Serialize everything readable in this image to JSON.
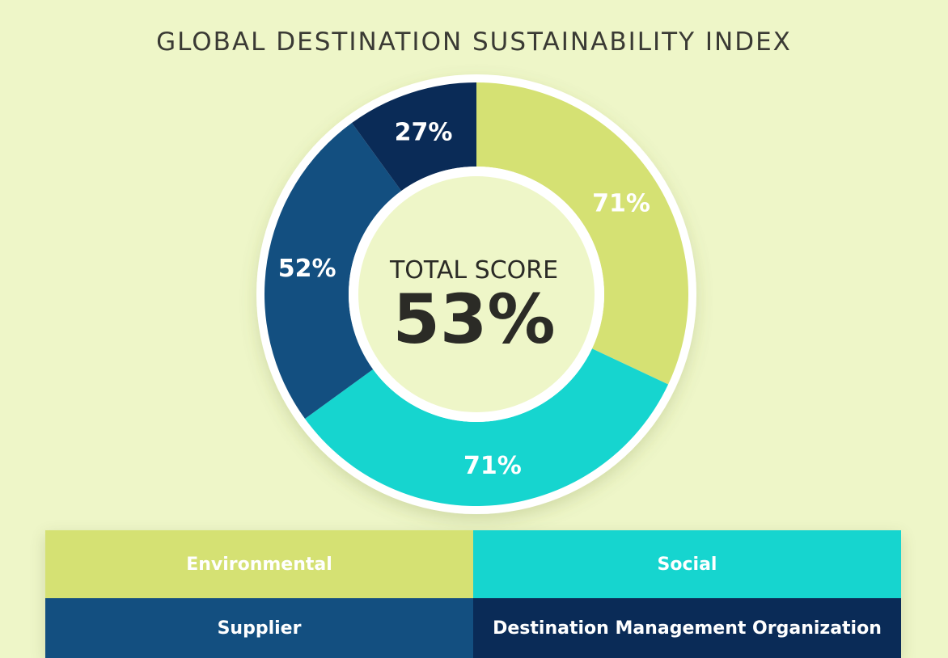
{
  "chart_data": {
    "type": "pie",
    "title": "GLOBAL DESTINATION SUSTAINABILITY INDEX",
    "center_caption": "TOTAL SCORE",
    "center_value": "53%",
    "slices": [
      {
        "name": "Environmental",
        "label": "71%",
        "value": 71,
        "share": 0.32,
        "color": "#d5e173"
      },
      {
        "name": "Social",
        "label": "71%",
        "value": 71,
        "share": 0.33,
        "color": "#16d5cf"
      },
      {
        "name": "Supplier",
        "label": "52%",
        "value": 52,
        "share": 0.25,
        "color": "#134f80"
      },
      {
        "name": "Destination Management Organization",
        "label": "27%",
        "value": 27,
        "share": 0.1,
        "color": "#0a2b57"
      }
    ]
  },
  "legend": {
    "items": [
      {
        "label": "Environmental",
        "color": "#d5e173"
      },
      {
        "label": "Social",
        "color": "#16d5cf"
      },
      {
        "label": "Supplier",
        "color": "#134f80"
      },
      {
        "label": "Destination Management Organization",
        "color": "#0a2b57"
      }
    ]
  }
}
